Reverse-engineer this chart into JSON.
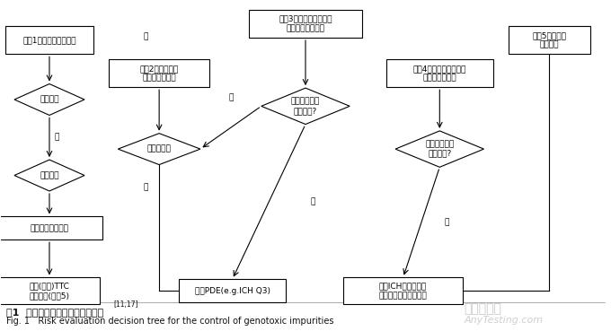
{
  "bg_color": "#ffffff",
  "fig_width": 6.8,
  "fig_height": 3.69,
  "dpi": 100,
  "box_color": "#ffffff",
  "box_edge": "#000000",
  "arrow_color": "#000000",
  "text_color": "#000000",
  "caption_cn": "图1  遗传毒性杂质风险控制决策树",
  "caption_cn_super": "[11,17]",
  "caption_en": "Fig. 1   Risk evaluation decision tree for the control of genotoxic impurities",
  "watermark1": "嘉峪检测网",
  "watermark2": "AnyTesting.com"
}
